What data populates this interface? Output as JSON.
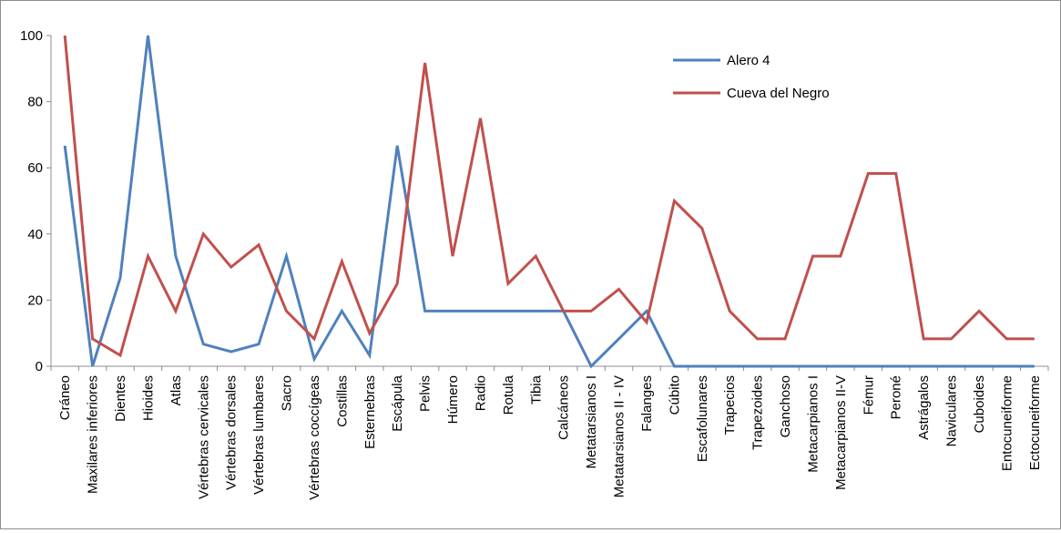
{
  "chart_data": {
    "type": "line",
    "title": "",
    "xlabel": "",
    "ylabel": "",
    "ylim": [
      0,
      100
    ],
    "yticks": [
      0,
      20,
      40,
      60,
      80,
      100
    ],
    "grid": false,
    "legend_position": "top-right",
    "categories": [
      "Cráneo",
      "Maxilares inferiores",
      "Dientes",
      "Hioides",
      "Atlas",
      "Vértebras cervicales",
      "Vértebras dorsales",
      "Vértebras lumbares",
      "Sacro",
      "Vértebras coccígeas",
      "Costillas",
      "Esternebras",
      "Escápula",
      "Pelvis",
      "Húmero",
      "Radio",
      "Rotula",
      "Tibia",
      "Calcáneos",
      "Metatarsianos I",
      "Metatarsianos II - IV",
      "Falanges",
      "Cúbito",
      "Escafolunares",
      "Trapecios",
      "Trapezoides",
      "Ganchoso",
      "Metacarpianos I",
      "Metacarpianos II-V",
      "Fémur",
      "Peroné",
      "Astrágalos",
      "Naviculares",
      "Cuboides",
      "Entocuneiforme",
      "Ectocuneiforme"
    ],
    "series": [
      {
        "name": "Alero 4",
        "color": "#4f81bd",
        "values": [
          66.7,
          0,
          26.7,
          100,
          33.3,
          6.7,
          4.4,
          6.7,
          33.3,
          2.2,
          16.7,
          3.3,
          66.7,
          16.7,
          16.7,
          16.7,
          16.7,
          16.7,
          16.7,
          0,
          8.3,
          16.7,
          0,
          0,
          0,
          0,
          0,
          0,
          0,
          0,
          0,
          0,
          0,
          0,
          0,
          0
        ]
      },
      {
        "name": "Cueva del Negro",
        "color": "#c0504d",
        "values": [
          100,
          8.3,
          3.3,
          33.3,
          16.7,
          40,
          30,
          36.7,
          16.7,
          8.3,
          31.7,
          10,
          25,
          91.7,
          33.3,
          75,
          25,
          33.3,
          16.7,
          16.7,
          23.3,
          13.3,
          50,
          41.7,
          16.7,
          8.3,
          8.3,
          33.3,
          33.3,
          58.3,
          58.3,
          8.3,
          8.3,
          16.7,
          8.3,
          8.3
        ]
      }
    ]
  }
}
